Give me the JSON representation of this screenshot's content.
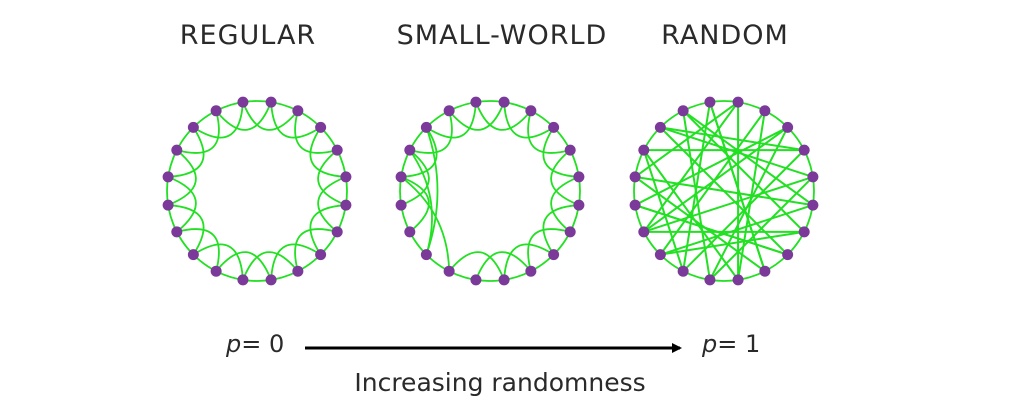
{
  "titles": {
    "regular": "REGULAR",
    "small_world": "SMALL-WORLD",
    "random": "RANDOM"
  },
  "p_start": {
    "variable": "p",
    "value": "= 0"
  },
  "p_end": {
    "variable": "p",
    "value": "= 1"
  },
  "caption": "Increasing randomness",
  "colors": {
    "edge": "#22e022",
    "node": "#7b3a9a",
    "text": "#2a2a2a",
    "arrow": "#000000"
  },
  "graphs": {
    "node_count": 20,
    "neighbors_each_side": 2,
    "small_world_rewired": [
      [
        11,
        15
      ],
      [
        12,
        16
      ],
      [
        12,
        17
      ]
    ],
    "random_edges": [
      [
        0,
        9
      ],
      [
        1,
        12
      ],
      [
        2,
        14
      ],
      [
        3,
        16
      ],
      [
        4,
        10
      ],
      [
        5,
        15
      ],
      [
        6,
        13
      ],
      [
        7,
        17
      ],
      [
        8,
        19
      ],
      [
        9,
        1
      ],
      [
        10,
        18
      ],
      [
        11,
        3
      ],
      [
        12,
        6
      ],
      [
        13,
        2
      ],
      [
        14,
        7
      ],
      [
        15,
        0
      ],
      [
        16,
        11
      ],
      [
        17,
        4
      ],
      [
        18,
        5
      ],
      [
        19,
        8
      ],
      [
        0,
        13
      ],
      [
        2,
        10
      ],
      [
        3,
        17
      ],
      [
        5,
        12
      ],
      [
        6,
        18
      ],
      [
        7,
        14
      ],
      [
        9,
        16
      ],
      [
        11,
        19
      ],
      [
        13,
        4
      ],
      [
        15,
        8
      ]
    ]
  }
}
